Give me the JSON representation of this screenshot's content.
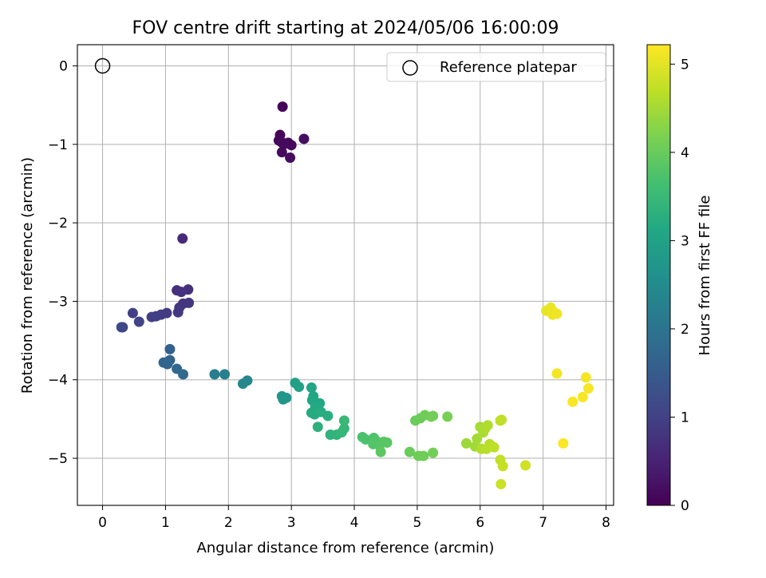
{
  "chart_data": {
    "type": "scatter",
    "title": "FOV centre drift starting at 2024/05/06 16:00:09",
    "xlabel": "Angular distance from reference (arcmin)",
    "ylabel": "Rotation from reference (arcmin)",
    "xlim": [
      -0.4,
      8.12
    ],
    "ylim": [
      -5.6,
      0.27
    ],
    "xticks": [
      "0",
      "1",
      "2",
      "3",
      "4",
      "5",
      "6",
      "7",
      "8"
    ],
    "yticks": [
      "0",
      "−1",
      "−2",
      "−3",
      "−4",
      "−5"
    ],
    "grid": true,
    "legend": {
      "placement": "top-right",
      "entries": [
        "Reference platepar"
      ]
    },
    "reference_point": {
      "x": 0,
      "y": 0,
      "label": "Reference platepar"
    },
    "colorbar": {
      "label": "Hours from first FF file",
      "min": 0,
      "max": 5.22,
      "ticks": [
        "0",
        "1",
        "2",
        "3",
        "4",
        "5"
      ],
      "colormap": "viridis"
    },
    "points": [
      {
        "x": 2.86,
        "y": -0.52,
        "c": 0.05
      },
      {
        "x": 2.82,
        "y": -0.88,
        "c": 0.07
      },
      {
        "x": 2.8,
        "y": -0.95,
        "c": 0.08
      },
      {
        "x": 2.84,
        "y": -0.97,
        "c": 0.1
      },
      {
        "x": 2.88,
        "y": -1.0,
        "c": 0.12
      },
      {
        "x": 2.95,
        "y": -0.98,
        "c": 0.13
      },
      {
        "x": 3.0,
        "y": -1.01,
        "c": 0.14
      },
      {
        "x": 2.85,
        "y": -1.1,
        "c": 0.15
      },
      {
        "x": 2.98,
        "y": -1.17,
        "c": 0.17
      },
      {
        "x": 3.2,
        "y": -0.93,
        "c": 0.2
      },
      {
        "x": 1.27,
        "y": -2.2,
        "c": 0.62
      },
      {
        "x": 1.18,
        "y": -2.86,
        "c": 0.7
      },
      {
        "x": 1.36,
        "y": -2.85,
        "c": 0.72
      },
      {
        "x": 1.25,
        "y": -2.88,
        "c": 0.74
      },
      {
        "x": 1.28,
        "y": -3.03,
        "c": 0.8
      },
      {
        "x": 1.37,
        "y": -3.02,
        "c": 0.82
      },
      {
        "x": 1.22,
        "y": -3.08,
        "c": 0.84
      },
      {
        "x": 1.2,
        "y": -3.14,
        "c": 0.86
      },
      {
        "x": 1.02,
        "y": -3.15,
        "c": 0.9
      },
      {
        "x": 0.93,
        "y": -3.17,
        "c": 0.92
      },
      {
        "x": 0.85,
        "y": -3.19,
        "c": 0.95
      },
      {
        "x": 0.78,
        "y": -3.2,
        "c": 0.97
      },
      {
        "x": 0.48,
        "y": -3.15,
        "c": 1.0
      },
      {
        "x": 0.58,
        "y": -3.26,
        "c": 1.05
      },
      {
        "x": 0.32,
        "y": -3.33,
        "c": 1.1
      },
      {
        "x": 0.3,
        "y": -3.33,
        "c": 1.12
      },
      {
        "x": 1.07,
        "y": -3.61,
        "c": 1.6
      },
      {
        "x": 1.07,
        "y": -3.75,
        "c": 1.65
      },
      {
        "x": 0.97,
        "y": -3.78,
        "c": 1.68
      },
      {
        "x": 1.03,
        "y": -3.8,
        "c": 1.7
      },
      {
        "x": 1.18,
        "y": -3.86,
        "c": 1.75
      },
      {
        "x": 1.28,
        "y": -3.93,
        "c": 1.8
      },
      {
        "x": 1.78,
        "y": -3.93,
        "c": 2.2
      },
      {
        "x": 1.94,
        "y": -3.93,
        "c": 2.25
      },
      {
        "x": 2.3,
        "y": -4.01,
        "c": 2.4
      },
      {
        "x": 2.23,
        "y": -4.05,
        "c": 2.42
      },
      {
        "x": 2.85,
        "y": -4.21,
        "c": 2.7
      },
      {
        "x": 2.92,
        "y": -4.23,
        "c": 2.72
      },
      {
        "x": 2.87,
        "y": -4.25,
        "c": 2.74
      },
      {
        "x": 3.06,
        "y": -4.04,
        "c": 2.95
      },
      {
        "x": 3.12,
        "y": -4.09,
        "c": 2.98
      },
      {
        "x": 3.32,
        "y": -4.1,
        "c": 3.05
      },
      {
        "x": 3.35,
        "y": -4.21,
        "c": 3.08
      },
      {
        "x": 3.33,
        "y": -4.26,
        "c": 3.1
      },
      {
        "x": 3.45,
        "y": -4.3,
        "c": 3.12
      },
      {
        "x": 3.38,
        "y": -4.34,
        "c": 3.15
      },
      {
        "x": 3.32,
        "y": -4.42,
        "c": 3.18
      },
      {
        "x": 3.37,
        "y": -4.44,
        "c": 3.2
      },
      {
        "x": 3.47,
        "y": -4.41,
        "c": 3.22
      },
      {
        "x": 3.58,
        "y": -4.46,
        "c": 3.25
      },
      {
        "x": 3.42,
        "y": -4.6,
        "c": 3.3
      },
      {
        "x": 3.62,
        "y": -4.7,
        "c": 3.35
      },
      {
        "x": 3.72,
        "y": -4.7,
        "c": 3.38
      },
      {
        "x": 3.8,
        "y": -4.67,
        "c": 3.42
      },
      {
        "x": 3.84,
        "y": -4.62,
        "c": 3.45
      },
      {
        "x": 3.84,
        "y": -4.52,
        "c": 3.48
      },
      {
        "x": 4.13,
        "y": -4.73,
        "c": 3.7
      },
      {
        "x": 4.18,
        "y": -4.76,
        "c": 3.72
      },
      {
        "x": 4.31,
        "y": -4.74,
        "c": 3.75
      },
      {
        "x": 4.35,
        "y": -4.78,
        "c": 3.78
      },
      {
        "x": 4.3,
        "y": -4.82,
        "c": 3.8
      },
      {
        "x": 4.4,
        "y": -4.84,
        "c": 3.82
      },
      {
        "x": 4.47,
        "y": -4.79,
        "c": 3.85
      },
      {
        "x": 4.52,
        "y": -4.8,
        "c": 3.87
      },
      {
        "x": 4.42,
        "y": -4.92,
        "c": 3.9
      },
      {
        "x": 4.88,
        "y": -4.92,
        "c": 4.0
      },
      {
        "x": 5.02,
        "y": -4.97,
        "c": 4.05
      },
      {
        "x": 5.1,
        "y": -4.97,
        "c": 4.07
      },
      {
        "x": 5.25,
        "y": -4.93,
        "c": 4.1
      },
      {
        "x": 4.97,
        "y": -4.52,
        "c": 4.02
      },
      {
        "x": 5.05,
        "y": -4.49,
        "c": 4.04
      },
      {
        "x": 5.12,
        "y": -4.45,
        "c": 4.06
      },
      {
        "x": 5.22,
        "y": -4.47,
        "c": 4.08
      },
      {
        "x": 5.25,
        "y": -4.46,
        "c": 4.1
      },
      {
        "x": 5.48,
        "y": -4.47,
        "c": 4.15
      },
      {
        "x": 5.78,
        "y": -4.81,
        "c": 4.45
      },
      {
        "x": 5.92,
        "y": -4.85,
        "c": 4.48
      },
      {
        "x": 5.95,
        "y": -4.75,
        "c": 4.5
      },
      {
        "x": 6.0,
        "y": -4.6,
        "c": 4.52
      },
      {
        "x": 6.05,
        "y": -4.67,
        "c": 4.55
      },
      {
        "x": 6.08,
        "y": -4.62,
        "c": 4.58
      },
      {
        "x": 6.12,
        "y": -4.58,
        "c": 4.6
      },
      {
        "x": 6.02,
        "y": -4.88,
        "c": 4.62
      },
      {
        "x": 6.1,
        "y": -4.88,
        "c": 4.65
      },
      {
        "x": 6.15,
        "y": -4.82,
        "c": 4.67
      },
      {
        "x": 6.22,
        "y": -4.86,
        "c": 4.7
      },
      {
        "x": 6.32,
        "y": -4.52,
        "c": 4.72
      },
      {
        "x": 6.34,
        "y": -4.51,
        "c": 4.73
      },
      {
        "x": 6.32,
        "y": -5.02,
        "c": 4.75
      },
      {
        "x": 6.36,
        "y": -5.1,
        "c": 4.77
      },
      {
        "x": 6.33,
        "y": -5.33,
        "c": 4.8
      },
      {
        "x": 6.72,
        "y": -5.09,
        "c": 4.85
      },
      {
        "x": 7.05,
        "y": -3.12,
        "c": 5.05
      },
      {
        "x": 7.12,
        "y": -3.08,
        "c": 5.07
      },
      {
        "x": 7.18,
        "y": -3.14,
        "c": 5.08
      },
      {
        "x": 7.15,
        "y": -3.17,
        "c": 5.1
      },
      {
        "x": 7.22,
        "y": -3.16,
        "c": 5.11
      },
      {
        "x": 7.22,
        "y": -3.92,
        "c": 5.13
      },
      {
        "x": 7.68,
        "y": -3.97,
        "c": 5.15
      },
      {
        "x": 7.72,
        "y": -4.11,
        "c": 5.16
      },
      {
        "x": 7.63,
        "y": -4.22,
        "c": 5.17
      },
      {
        "x": 7.47,
        "y": -4.28,
        "c": 5.18
      },
      {
        "x": 7.32,
        "y": -4.81,
        "c": 5.2
      }
    ]
  }
}
